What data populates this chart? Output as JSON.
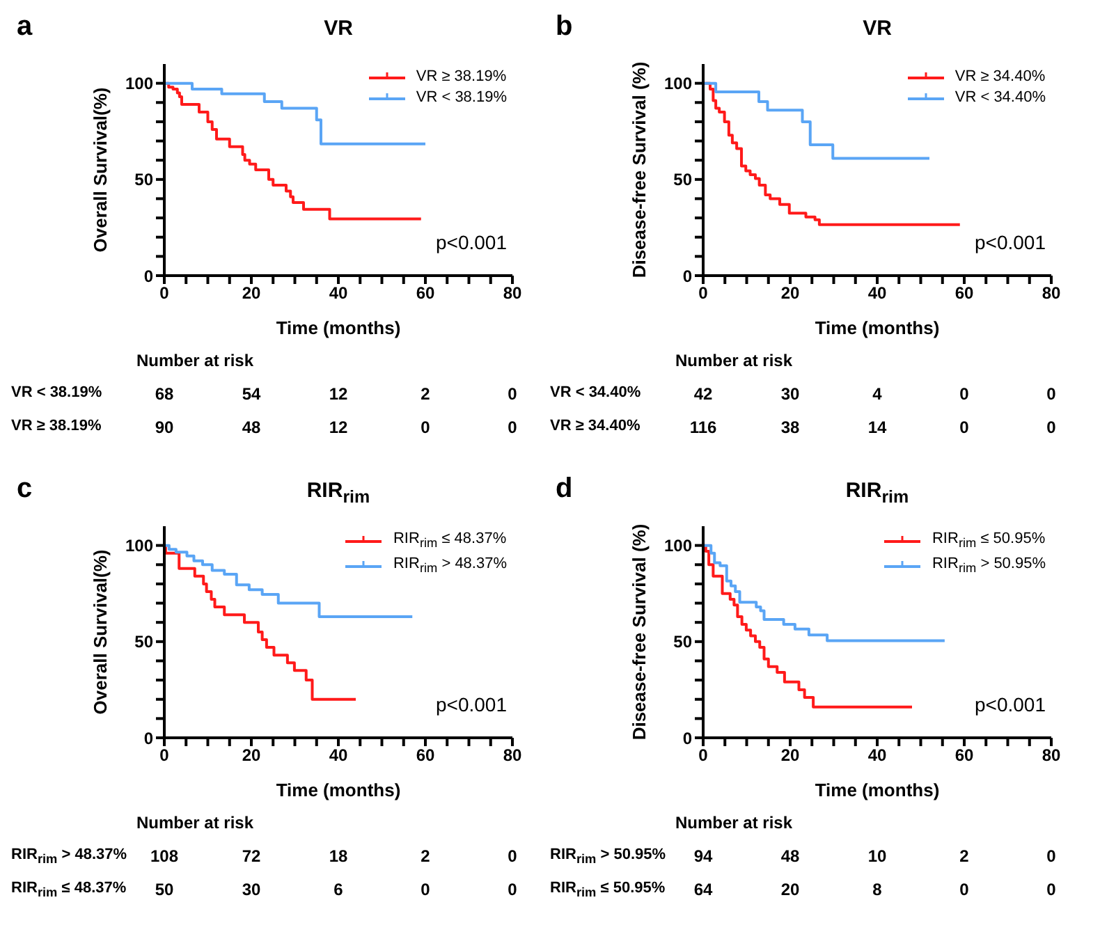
{
  "chart_data": [
    {
      "type": "step",
      "title": "VR",
      "xlabel": "Time (months)",
      "ylabel": "Overall Survival(%)",
      "legend": "top right",
      "marker": "none",
      "xlim": [
        0,
        80
      ],
      "xticks": [
        0,
        {
          "value": 5,
          "label": null
        },
        {
          "value": 10,
          "label": null
        },
        {
          "value": 15,
          "label": null
        },
        20,
        {
          "value": 25,
          "label": null
        },
        {
          "value": 30,
          "label": null
        },
        {
          "value": 35,
          "label": null
        },
        40,
        {
          "value": 45,
          "label": null
        },
        {
          "value": 50,
          "label": null
        },
        {
          "value": 55,
          "label": null
        },
        60,
        {
          "value": 65,
          "label": null
        },
        {
          "value": 70,
          "label": null
        },
        {
          "value": 75,
          "label": null
        },
        80
      ],
      "ylim": [
        0,
        110
      ],
      "yticks": [
        0,
        {
          "value": 10,
          "label": null
        },
        {
          "value": 20,
          "label": null
        },
        {
          "value": 30,
          "label": null
        },
        {
          "value": 40,
          "label": null
        },
        50,
        {
          "value": 60,
          "label": null
        },
        {
          "value": 70,
          "label": null
        },
        {
          "value": 80,
          "label": null
        },
        {
          "value": 90,
          "label": null
        },
        100
      ],
      "series": [
        {
          "name": "VR ≥ 38.19%",
          "color": "#ff1a1a",
          "x": [
            0,
            1,
            2,
            3,
            3.5,
            4,
            8,
            10,
            11,
            12,
            15,
            18,
            18.5,
            19.6,
            21,
            24,
            25,
            28,
            29,
            29.6,
            32,
            38,
            59
          ],
          "values": [
            100,
            98,
            97,
            95,
            93,
            89,
            85,
            80,
            76,
            71,
            67,
            63,
            60,
            58,
            55,
            50,
            47,
            44,
            41,
            38,
            34.5,
            29.5,
            29.5
          ]
        },
        {
          "name": "VR < 38.19%",
          "color": "#5aa5f5",
          "x": [
            0,
            6.4,
            13.2,
            23,
            27,
            35,
            36,
            60
          ],
          "values": [
            100,
            97,
            94.5,
            90.5,
            87,
            81,
            68.5,
            68.5
          ]
        }
      ],
      "annotations": [
        "a",
        "p<0.001",
        "Number at risk",
        "VR < 38.19%",
        "68",
        "54",
        "12",
        "2",
        "0",
        "VR ≥ 38.19%",
        "90",
        "48",
        "12",
        "0",
        "0"
      ]
    },
    {
      "type": "step",
      "title": "VR",
      "xlabel": "Time (months)",
      "ylabel": "Disease-free Survival (%)",
      "legend": "top right",
      "marker": "none",
      "xlim": [
        0,
        80
      ],
      "xticks": [
        0,
        {
          "value": 5,
          "label": null
        },
        {
          "value": 10,
          "label": null
        },
        {
          "value": 15,
          "label": null
        },
        20,
        {
          "value": 25,
          "label": null
        },
        {
          "value": 30,
          "label": null
        },
        {
          "value": 35,
          "label": null
        },
        40,
        {
          "value": 45,
          "label": null
        },
        {
          "value": 50,
          "label": null
        },
        {
          "value": 55,
          "label": null
        },
        60,
        {
          "value": 65,
          "label": null
        },
        {
          "value": 70,
          "label": null
        },
        {
          "value": 75,
          "label": null
        },
        80
      ],
      "ylim": [
        0,
        110
      ],
      "yticks": [
        0,
        {
          "value": 10,
          "label": null
        },
        {
          "value": 20,
          "label": null
        },
        {
          "value": 30,
          "label": null
        },
        {
          "value": 40,
          "label": null
        },
        50,
        {
          "value": 60,
          "label": null
        },
        {
          "value": 70,
          "label": null
        },
        {
          "value": 80,
          "label": null
        },
        {
          "value": 90,
          "label": null
        },
        100
      ],
      "series": [
        {
          "name": "VR ≥ 34.40%",
          "color": "#ff1a1a",
          "x": [
            0,
            1.6,
            2.3,
            2.9,
            3.7,
            4.9,
            5.9,
            6.7,
            7.7,
            8.8,
            9.8,
            10.8,
            12,
            12.9,
            14.3,
            15.4,
            17.6,
            19.8,
            23.6,
            25.7,
            26.7,
            59
          ],
          "values": [
            100,
            97,
            91,
            87,
            85,
            80,
            73,
            69,
            66,
            57,
            54.5,
            52.5,
            50.5,
            47,
            42,
            40,
            37,
            32.5,
            30.5,
            29,
            26.5,
            26.5
          ]
        },
        {
          "name": "VR < 34.40%",
          "color": "#5aa5f5",
          "x": [
            0,
            2.9,
            12.8,
            14.8,
            22.8,
            24.6,
            29.8,
            52
          ],
          "values": [
            100,
            95.5,
            90.5,
            86,
            80,
            68,
            61,
            61
          ]
        }
      ],
      "annotations": [
        "b",
        "p<0.001",
        "Number at risk",
        "VR < 34.40%",
        "42",
        "30",
        "4",
        "0",
        "0",
        "VR ≥ 34.40%",
        "116",
        "38",
        "14",
        "0",
        "0"
      ]
    },
    {
      "type": "step",
      "title": "RIR$_{rim}$",
      "xlabel": "Time (months)",
      "ylabel": "Overall Survival(%)",
      "legend": "top right",
      "marker": "none",
      "xlim": [
        0,
        80
      ],
      "xticks": [
        0,
        {
          "value": 5,
          "label": null
        },
        {
          "value": 10,
          "label": null
        },
        {
          "value": 15,
          "label": null
        },
        20,
        {
          "value": 25,
          "label": null
        },
        {
          "value": 30,
          "label": null
        },
        {
          "value": 35,
          "label": null
        },
        40,
        {
          "value": 45,
          "label": null
        },
        {
          "value": 50,
          "label": null
        },
        {
          "value": 55,
          "label": null
        },
        60,
        {
          "value": 65,
          "label": null
        },
        {
          "value": 70,
          "label": null
        },
        {
          "value": 75,
          "label": null
        },
        80
      ],
      "ylim": [
        0,
        110
      ],
      "yticks": [
        0,
        {
          "value": 10,
          "label": null
        },
        {
          "value": 20,
          "label": null
        },
        {
          "value": 30,
          "label": null
        },
        {
          "value": 40,
          "label": null
        },
        50,
        {
          "value": 60,
          "label": null
        },
        {
          "value": 70,
          "label": null
        },
        {
          "value": 80,
          "label": null
        },
        {
          "value": 90,
          "label": null
        },
        100
      ],
      "series": [
        {
          "name": "RIR$_{rim}$ ≤ 48.37%",
          "color": "#ff1a1a",
          "x": [
            0,
            0.3,
            3.4,
            7,
            9,
            9.7,
            10.8,
            11.6,
            13.8,
            18.4,
            21.6,
            22.5,
            23.5,
            25.2,
            28.3,
            29.9,
            32.6,
            34,
            44
          ],
          "values": [
            100,
            96,
            88,
            84,
            80,
            76,
            72,
            68,
            64,
            60,
            55,
            51,
            47,
            43,
            39,
            35,
            30,
            20,
            20
          ]
        },
        {
          "name": "RIR$_{rim}$ > 48.37%",
          "color": "#5aa5f5",
          "x": [
            0,
            1.1,
            2.7,
            5.2,
            6.8,
            8.8,
            11,
            13.8,
            16.6,
            19.5,
            22.5,
            26.2,
            35.6,
            57
          ],
          "values": [
            100,
            98,
            96.5,
            94.5,
            92,
            90,
            87,
            85,
            79.5,
            77,
            74.5,
            70,
            63,
            63
          ]
        }
      ],
      "annotations": [
        "c",
        "p<0.001",
        "Number at risk",
        "RIR$_{rim}$ > 48.37%",
        "108",
        "72",
        "18",
        "2",
        "0",
        "RIR$_{rim}$ ≤ 48.37%",
        "50",
        "30",
        "6",
        "0",
        "0"
      ]
    },
    {
      "type": "step",
      "title": "RIR$_{rim}$",
      "xlabel": "Time (months)",
      "ylabel": "Disease-free Survival (%)",
      "legend": "top right",
      "marker": "none",
      "xlim": [
        0,
        80
      ],
      "xticks": [
        0,
        {
          "value": 5,
          "label": null
        },
        {
          "value": 10,
          "label": null
        },
        {
          "value": 15,
          "label": null
        },
        20,
        {
          "value": 25,
          "label": null
        },
        {
          "value": 30,
          "label": null
        },
        {
          "value": 35,
          "label": null
        },
        40,
        {
          "value": 45,
          "label": null
        },
        {
          "value": 50,
          "label": null
        },
        {
          "value": 55,
          "label": null
        },
        60,
        {
          "value": 65,
          "label": null
        },
        {
          "value": 70,
          "label": null
        },
        {
          "value": 75,
          "label": null
        },
        80
      ],
      "ylim": [
        0,
        110
      ],
      "yticks": [
        0,
        {
          "value": 10,
          "label": null
        },
        {
          "value": 20,
          "label": null
        },
        {
          "value": 30,
          "label": null
        },
        {
          "value": 40,
          "label": null
        },
        50,
        {
          "value": 60,
          "label": null
        },
        {
          "value": 70,
          "label": null
        },
        {
          "value": 80,
          "label": null
        },
        {
          "value": 90,
          "label": null
        },
        100
      ],
      "series": [
        {
          "name": "RIR$_{rim}$ ≤ 50.95%",
          "color": "#ff1a1a",
          "x": [
            0,
            0.6,
            1.3,
            2.3,
            4.4,
            6.2,
            7.1,
            7.9,
            8.9,
            9.9,
            10.9,
            12,
            13,
            14,
            15,
            17,
            18.7,
            22,
            23.3,
            25.3,
            48
          ],
          "values": [
            100,
            97,
            90,
            84,
            75,
            72,
            69,
            63,
            59,
            56,
            53,
            50,
            47,
            41,
            37,
            34,
            29,
            25,
            21,
            16,
            16
          ]
        },
        {
          "name": "RIR$_{rim}$ > 50.95%",
          "color": "#5aa5f5",
          "x": [
            0,
            1.8,
            2.6,
            3.9,
            5.4,
            6.4,
            7.4,
            8.4,
            12.2,
            13.2,
            14,
            18.5,
            21.1,
            24.3,
            28.5,
            55.5
          ],
          "values": [
            100,
            96,
            91,
            89.5,
            81.5,
            79,
            76,
            70.5,
            68,
            66,
            61.5,
            59,
            56.5,
            53.5,
            50.5,
            50.5
          ]
        }
      ],
      "annotations": [
        "d",
        "p<0.001",
        "Number at risk",
        "RIR$_{rim}$ > 50.95%",
        "94",
        "48",
        "10",
        "2",
        "0",
        "RIR$_{rim}$ ≤ 50.95%",
        "64",
        "20",
        "8",
        "0",
        "0"
      ]
    }
  ]
}
